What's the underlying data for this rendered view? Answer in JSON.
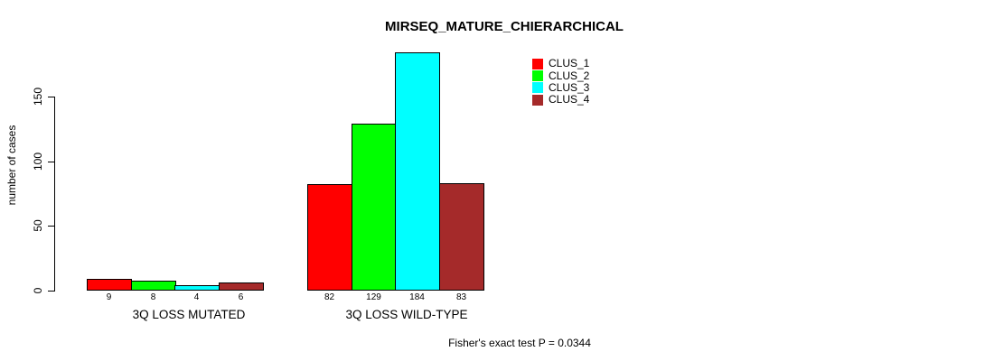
{
  "chart_data": {
    "type": "bar",
    "title": "MIRSEQ_MATURE_CHIERARCHICAL",
    "ylabel": "number of cases",
    "xlabel": "",
    "categories": [
      "3Q LOSS MUTATED",
      "3Q LOSS WILD-TYPE"
    ],
    "series": [
      {
        "name": "CLUS_1",
        "color": "#FF0000",
        "values": [
          9,
          82
        ]
      },
      {
        "name": "CLUS_2",
        "color": "#00FF00",
        "values": [
          8,
          129
        ]
      },
      {
        "name": "CLUS_3",
        "color": "#00FFFF",
        "values": [
          4,
          184
        ]
      },
      {
        "name": "CLUS_4",
        "color": "#A52A2A",
        "values": [
          6,
          83
        ]
      }
    ],
    "yticks": [
      0,
      50,
      100,
      150
    ],
    "ylim": [
      0,
      184
    ],
    "bar_value_labels_shown": true,
    "grid": false,
    "legend_position": "top-right-inside",
    "annotation": "Fisher's exact test P = 0.0344"
  }
}
